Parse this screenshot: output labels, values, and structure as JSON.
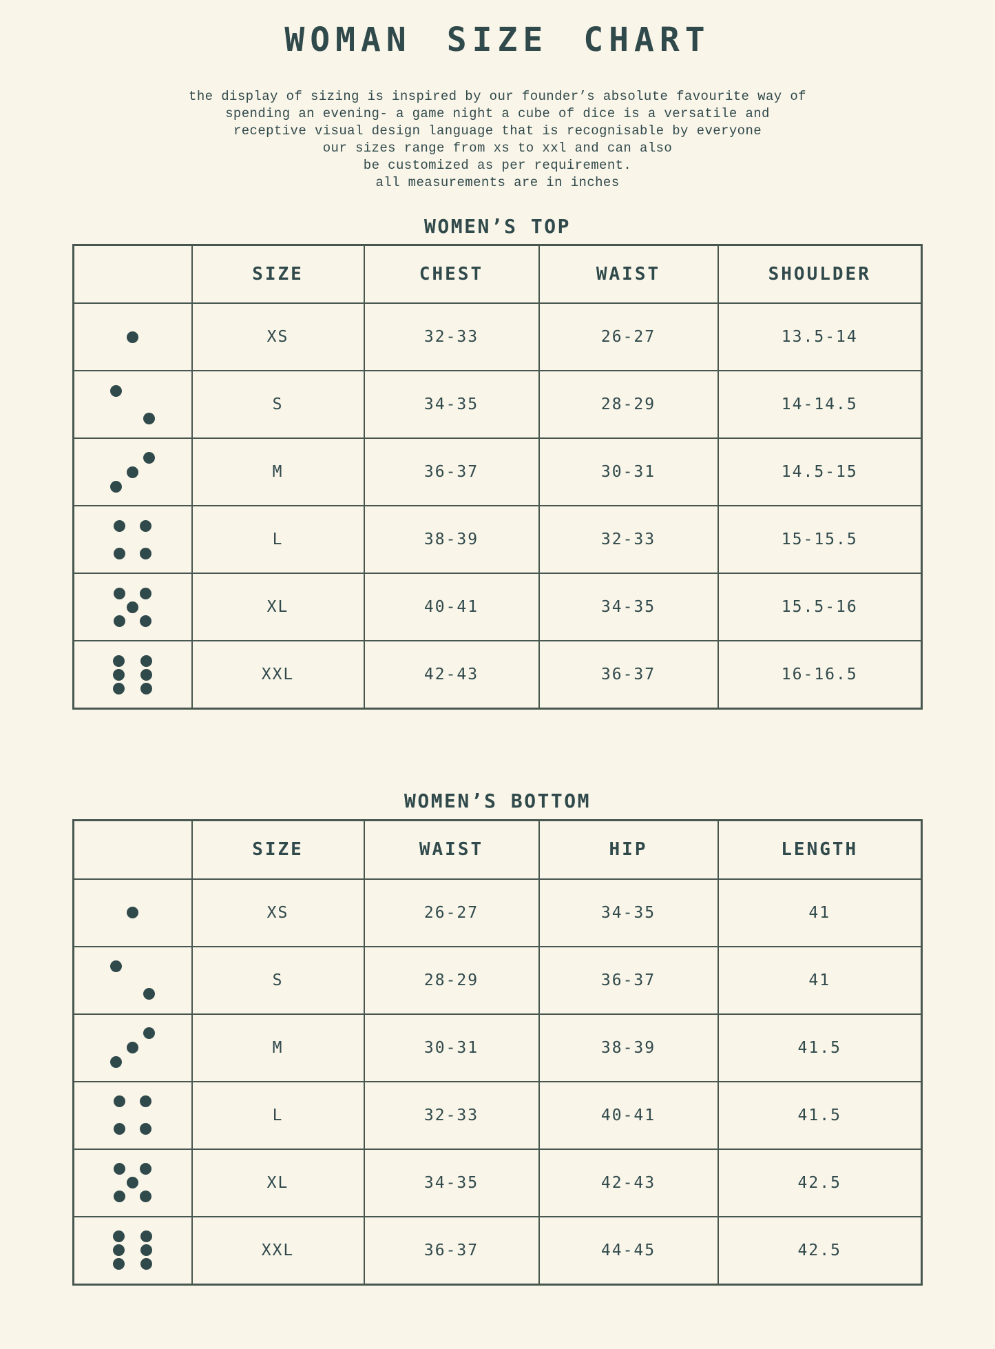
{
  "colors": {
    "background": "#f9f5e9",
    "ink": "#30494b",
    "table_border": "#47564f"
  },
  "header": {
    "title": "WOMAN SIZE CHART",
    "intro_lines": [
      "the display of sizing is inspired by our founder’s absolute favourite way of",
      "spending an evening- a game night a cube of dice is a versatile and",
      "receptive visual design language that is recognisable by everyone",
      "our sizes range from xs to xxl and can also",
      "be customized as per requirement.",
      "all measurements are in inches"
    ]
  },
  "tables": [
    {
      "title": "WOMEN’S TOP",
      "columns": [
        "",
        "SIZE",
        "CHEST",
        "WAIST",
        "SHOULDER"
      ],
      "rows": [
        {
          "dice_pips": 1,
          "cells": [
            "XS",
            "32-33",
            "26-27",
            "13.5-14"
          ]
        },
        {
          "dice_pips": 2,
          "cells": [
            "S",
            "34-35",
            "28-29",
            "14-14.5"
          ]
        },
        {
          "dice_pips": 3,
          "cells": [
            "M",
            "36-37",
            "30-31",
            "14.5-15"
          ]
        },
        {
          "dice_pips": 4,
          "cells": [
            "L",
            "38-39",
            "32-33",
            "15-15.5"
          ]
        },
        {
          "dice_pips": 5,
          "cells": [
            "XL",
            "40-41",
            "34-35",
            "15.5-16"
          ]
        },
        {
          "dice_pips": 6,
          "cells": [
            "XXL",
            "42-43",
            "36-37",
            "16-16.5"
          ]
        }
      ]
    },
    {
      "title": "WOMEN’S BOTTOM",
      "columns": [
        "",
        "SIZE",
        "WAIST",
        "HIP",
        "LENGTH"
      ],
      "rows": [
        {
          "dice_pips": 1,
          "cells": [
            "XS",
            "26-27",
            "34-35",
            "41"
          ]
        },
        {
          "dice_pips": 2,
          "cells": [
            "S",
            "28-29",
            "36-37",
            "41"
          ]
        },
        {
          "dice_pips": 3,
          "cells": [
            "M",
            "30-31",
            "38-39",
            "41.5"
          ]
        },
        {
          "dice_pips": 4,
          "cells": [
            "L",
            "32-33",
            "40-41",
            "41.5"
          ]
        },
        {
          "dice_pips": 5,
          "cells": [
            "XL",
            "34-35",
            "42-43",
            "42.5"
          ]
        },
        {
          "dice_pips": 6,
          "cells": [
            "XXL",
            "36-37",
            "44-45",
            "42.5"
          ]
        }
      ]
    }
  ]
}
